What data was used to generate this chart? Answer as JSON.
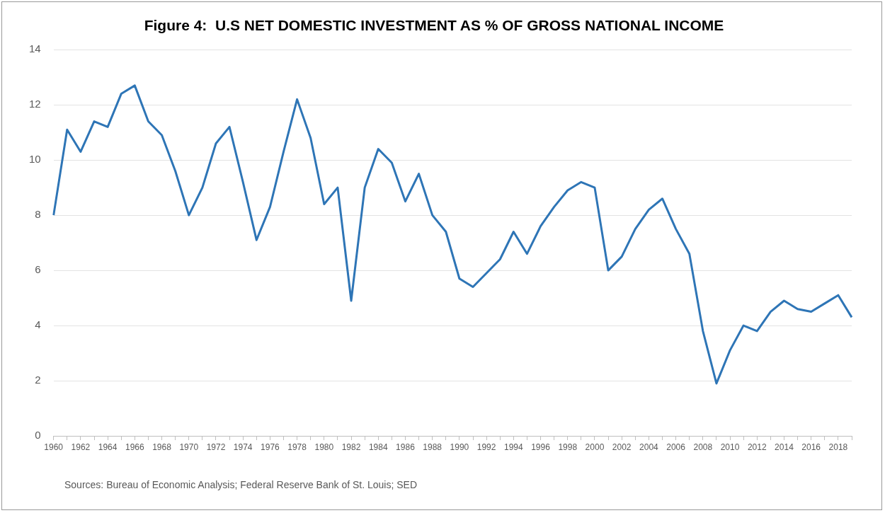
{
  "chart_data": {
    "type": "line",
    "title": "Figure 4:  U.S NET DOMESTIC INVESTMENT AS % OF GROSS NATIONAL INCOME",
    "categories": [
      "1960",
      null,
      "1962",
      null,
      "1964",
      null,
      "1966",
      null,
      "1968",
      null,
      "1970",
      null,
      "1972",
      null,
      "1974",
      null,
      "1976",
      null,
      "1978",
      null,
      "1980",
      null,
      "1982",
      null,
      "1984",
      null,
      "1986",
      null,
      "1988",
      null,
      "1990",
      null,
      "1992",
      null,
      "1994",
      null,
      "1996",
      null,
      "1998",
      null,
      "2000",
      null,
      "2002",
      null,
      "2004",
      null,
      "2006",
      null,
      "2008",
      null,
      "2010",
      null,
      "2012",
      null,
      "2014",
      null,
      "2016",
      null,
      "2018",
      null
    ],
    "series": [
      {
        "color": "#2e75b6",
        "values": [
          8.0,
          11.1,
          10.3,
          11.4,
          11.2,
          12.4,
          12.7,
          11.4,
          10.9,
          9.6,
          8.0,
          9.0,
          10.6,
          11.2,
          9.2,
          7.1,
          8.3,
          10.3,
          12.2,
          10.8,
          8.4,
          9.0,
          4.9,
          9.0,
          10.4,
          9.9,
          8.5,
          9.5,
          8.0,
          7.4,
          5.7,
          5.4,
          5.9,
          6.4,
          7.4,
          6.6,
          7.6,
          8.3,
          8.9,
          9.2,
          9.0,
          6.0,
          6.5,
          7.5,
          8.2,
          8.6,
          7.5,
          6.6,
          3.8,
          1.9,
          3.1,
          4.0,
          3.8,
          4.5,
          4.9,
          4.6,
          4.5,
          4.8,
          5.1,
          4.3
        ]
      }
    ],
    "ylim": [
      0,
      14
    ],
    "yticks": [
      0,
      2,
      4,
      6,
      8,
      10,
      12,
      14
    ],
    "grid": "y",
    "legend": false,
    "marker": "none",
    "line_style": "solid",
    "annotations": [
      "Sources:  Bureau of Economic Analysis; Federal Reserve Bank of St. Louis; SED"
    ]
  }
}
